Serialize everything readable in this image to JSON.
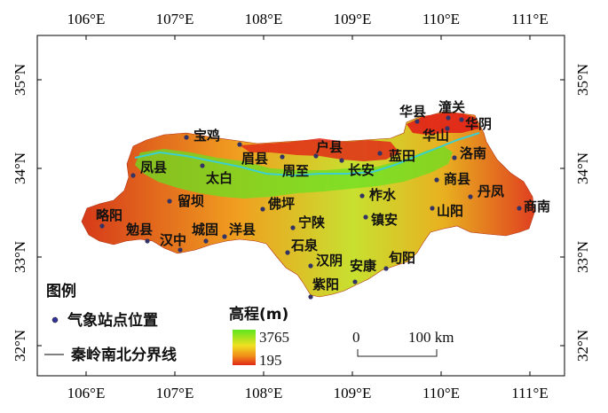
{
  "axes": {
    "top_ticks": [
      "106°E",
      "107°E",
      "108°E",
      "109°E",
      "110°E",
      "111°E"
    ],
    "bottom_ticks": [
      "106°E",
      "107°E",
      "108°E",
      "109°E",
      "110°E",
      "111°E"
    ],
    "left_ticks": [
      "35°N",
      "34°N",
      "33°N",
      "32°N"
    ],
    "right_ticks": [
      "35°N",
      "34°N",
      "33°N",
      "32°N"
    ]
  },
  "stations": [
    {
      "name": "宝鸡"
    },
    {
      "name": "眉县"
    },
    {
      "name": "户县"
    },
    {
      "name": "周至"
    },
    {
      "name": "长安"
    },
    {
      "name": "蓝田"
    },
    {
      "name": "华县"
    },
    {
      "name": "潼关"
    },
    {
      "name": "华阴"
    },
    {
      "name": "华山"
    },
    {
      "name": "洛南"
    },
    {
      "name": "凤县"
    },
    {
      "name": "太白"
    },
    {
      "name": "商县"
    },
    {
      "name": "丹凤"
    },
    {
      "name": "商南"
    },
    {
      "name": "留坝"
    },
    {
      "name": "佛坪"
    },
    {
      "name": "柞水"
    },
    {
      "name": "略阳"
    },
    {
      "name": "山阳"
    },
    {
      "name": "宁陕"
    },
    {
      "name": "镇安"
    },
    {
      "name": "勉县"
    },
    {
      "name": "汉中"
    },
    {
      "name": "城固"
    },
    {
      "name": "洋县"
    },
    {
      "name": "石泉"
    },
    {
      "name": "汉阴"
    },
    {
      "name": "旬阳"
    },
    {
      "name": "安康"
    },
    {
      "name": "紫阳"
    }
  ],
  "legend": {
    "title": "图例",
    "station_label": "气象站点位置",
    "boundary_label": "秦岭南北分界线",
    "elevation_title": "高程(m)",
    "elevation_max": "3765",
    "elevation_min": "195",
    "scale_zero": "0",
    "scale_label": "100 km"
  },
  "colors": {
    "high": "#66ee22",
    "mid": "#f0c020",
    "low": "#dd2020",
    "boundary": "#33cccc",
    "station": "#333366"
  }
}
